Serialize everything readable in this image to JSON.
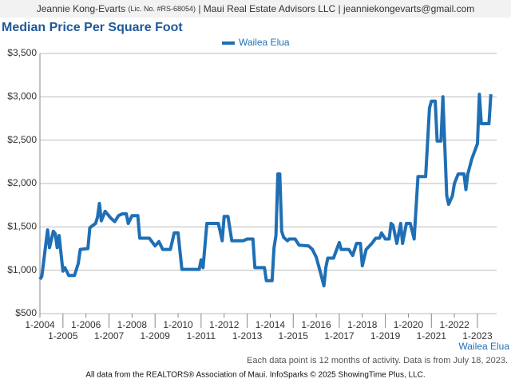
{
  "header": {
    "agent": "Jeannie Kong-Evarts",
    "license": "(Lic. No. #RS-68054)",
    "details": "| Maui Real Estate Advisors LLC | jeanniekongevarts@gmail.com"
  },
  "chart_data": {
    "type": "line",
    "title": "Median Price Per Square Foot",
    "x": [
      "2004-01",
      "2004-02",
      "2004-05",
      "2004-06",
      "2004-08",
      "2004-09",
      "2004-10",
      "2004-11",
      "2005-01",
      "2005-02",
      "2005-04",
      "2005-07",
      "2005-09",
      "2005-10",
      "2006-02",
      "2006-03",
      "2006-06",
      "2006-07",
      "2006-08",
      "2006-09",
      "2006-11",
      "2007-02",
      "2007-04",
      "2007-06",
      "2007-08",
      "2007-10",
      "2007-11",
      "2008-01",
      "2008-04",
      "2008-05",
      "2008-10",
      "2009-01",
      "2009-03",
      "2009-05",
      "2009-09",
      "2009-11",
      "2010-01",
      "2010-03",
      "2010-12",
      "2011-01",
      "2011-02",
      "2011-04",
      "2011-10",
      "2011-12",
      "2012-01",
      "2012-03",
      "2012-05",
      "2012-11",
      "2013-01",
      "2013-04",
      "2013-05",
      "2013-10",
      "2013-11",
      "2014-02",
      "2014-03",
      "2014-04",
      "2014-05",
      "2014-06",
      "2014-07",
      "2014-08",
      "2014-10",
      "2014-11",
      "2015-02",
      "2015-04",
      "2015-09",
      "2015-11",
      "2016-01",
      "2016-03",
      "2016-05",
      "2016-06",
      "2016-07",
      "2016-10",
      "2017-01",
      "2017-02",
      "2017-06",
      "2017-08",
      "2017-10",
      "2017-12",
      "2018-01",
      "2018-03",
      "2018-06",
      "2018-08",
      "2018-10",
      "2018-11",
      "2019-01",
      "2019-03",
      "2019-04",
      "2019-05",
      "2019-07",
      "2019-09",
      "2019-10",
      "2019-12",
      "2020-02",
      "2020-04",
      "2020-06",
      "2020-10",
      "2020-12",
      "2021-01",
      "2021-03",
      "2021-04",
      "2021-06",
      "2021-07",
      "2021-09",
      "2021-10",
      "2021-12",
      "2022-01",
      "2022-03",
      "2022-06",
      "2022-07",
      "2022-08",
      "2022-10",
      "2023-01",
      "2023-02",
      "2023-03",
      "2023-07",
      "2023-08"
    ],
    "series": [
      {
        "name": "Wailea Elua",
        "color": "#1f6fb5",
        "values": [
          895,
          930,
          1465,
          1260,
          1450,
          1420,
          1260,
          1400,
          990,
          1030,
          940,
          940,
          1080,
          1240,
          1250,
          1490,
          1540,
          1610,
          1770,
          1570,
          1680,
          1600,
          1560,
          1630,
          1650,
          1650,
          1540,
          1630,
          1630,
          1370,
          1370,
          1280,
          1330,
          1240,
          1240,
          1430,
          1430,
          1010,
          1010,
          1120,
          1030,
          1540,
          1540,
          1340,
          1620,
          1620,
          1340,
          1340,
          1360,
          1360,
          1030,
          1030,
          880,
          880,
          1260,
          1400,
          2110,
          2110,
          1450,
          1380,
          1340,
          1360,
          1360,
          1290,
          1280,
          1240,
          1150,
          990,
          820,
          1030,
          1140,
          1140,
          1320,
          1240,
          1240,
          1170,
          1310,
          1310,
          1050,
          1240,
          1310,
          1370,
          1370,
          1430,
          1360,
          1360,
          1540,
          1520,
          1310,
          1540,
          1310,
          1540,
          1540,
          1360,
          2080,
          2080,
          2870,
          2950,
          2950,
          2490,
          2490,
          3000,
          1860,
          1760,
          1860,
          2000,
          2110,
          2110,
          1930,
          2110,
          2280,
          2460,
          3030,
          2690,
          2690,
          3030
        ]
      }
    ],
    "xlim": [
      "2004-01",
      "2023-11"
    ],
    "xticks": [
      {
        "value": "2004-01",
        "label": "1-2004"
      },
      {
        "value": "2005-01",
        "label": "1-2005"
      },
      {
        "value": "2006-01",
        "label": "1-2006"
      },
      {
        "value": "2007-01",
        "label": "1-2007"
      },
      {
        "value": "2008-01",
        "label": "1-2008"
      },
      {
        "value": "2009-01",
        "label": "1-2009"
      },
      {
        "value": "2010-01",
        "label": "1-2010"
      },
      {
        "value": "2011-01",
        "label": "1-2011"
      },
      {
        "value": "2012-01",
        "label": "1-2012"
      },
      {
        "value": "2013-01",
        "label": "1-2013"
      },
      {
        "value": "2014-01",
        "label": "1-2014"
      },
      {
        "value": "2015-01",
        "label": "1-2015"
      },
      {
        "value": "2016-01",
        "label": "1-2016"
      },
      {
        "value": "2017-01",
        "label": "1-2017"
      },
      {
        "value": "2018-01",
        "label": "1-2018"
      },
      {
        "value": "2019-01",
        "label": "1-2019"
      },
      {
        "value": "2020-01",
        "label": "1-2020"
      },
      {
        "value": "2021-01",
        "label": "1-2021"
      },
      {
        "value": "2022-01",
        "label": "1-2022"
      },
      {
        "value": "2023-01",
        "label": "1-2023"
      }
    ],
    "ylim": [
      500,
      3500
    ],
    "yticks": [
      {
        "value": 500,
        "label": "$500"
      },
      {
        "value": 1000,
        "label": "$1,000"
      },
      {
        "value": 1500,
        "label": "$1,500"
      },
      {
        "value": 2000,
        "label": "$2,000"
      },
      {
        "value": 2500,
        "label": "$2,500"
      },
      {
        "value": 3000,
        "label": "$3,000"
      },
      {
        "value": 3500,
        "label": "$3,500"
      }
    ],
    "grid": true,
    "legend": "top",
    "area_label": "Wailea Elua",
    "note": "Each data point is 12 months of activity. Data is from July 18, 2023.",
    "source": "All data from the REALTORS® Association of Maui. InfoSparks © 2025 ShowingTime Plus, LLC."
  }
}
